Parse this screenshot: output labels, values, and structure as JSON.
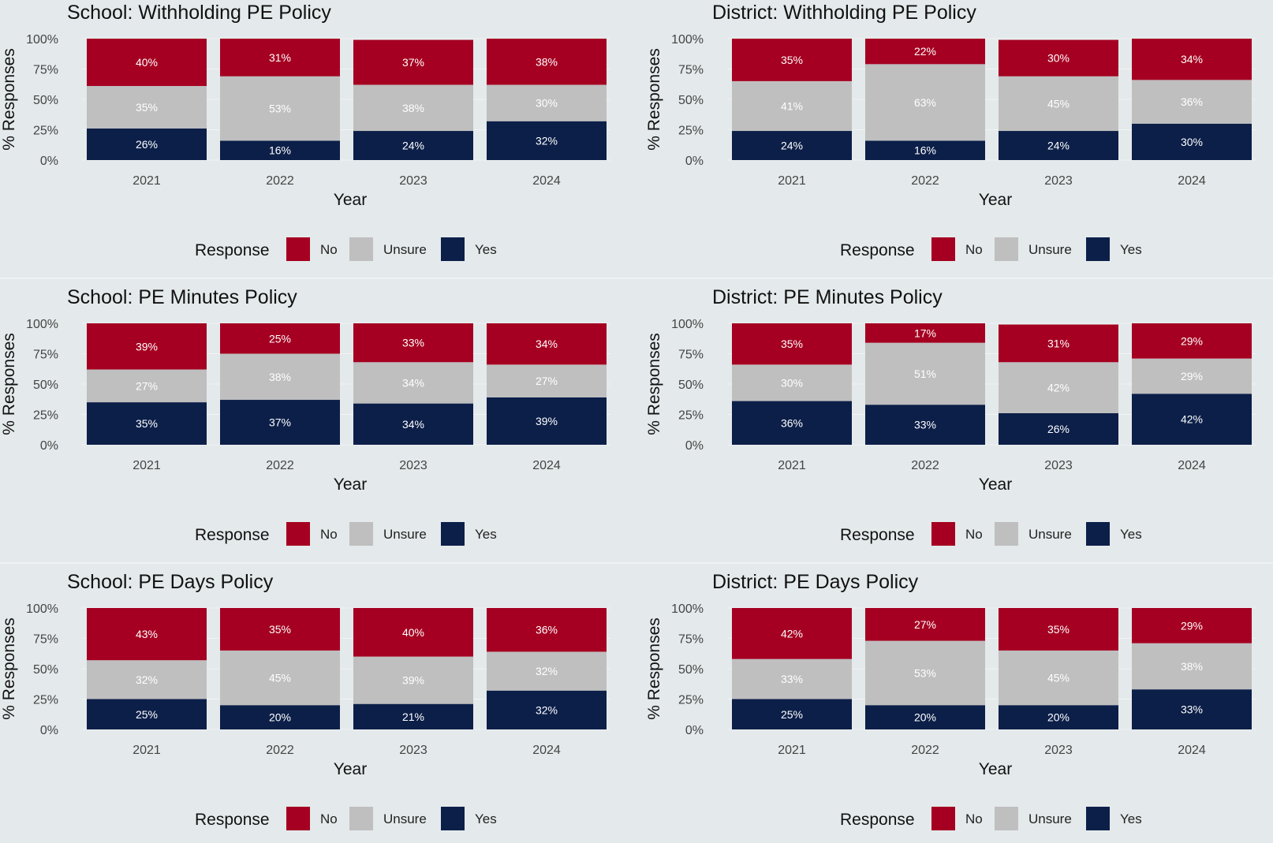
{
  "colors": {
    "No": "#a50021",
    "Unsure": "#bfbfbf",
    "Yes": "#0c1f49"
  },
  "legend": {
    "title": "Response",
    "labels": [
      "No",
      "Unsure",
      "Yes"
    ]
  },
  "chart_data": [
    {
      "type": "bar",
      "stacked": true,
      "title": "School: Withholding PE Policy",
      "xlabel": "Year",
      "ylabel": "% Responses",
      "categories": [
        "2021",
        "2022",
        "2023",
        "2024"
      ],
      "ylim": [
        0,
        100
      ],
      "yticks": [
        "0%",
        "25%",
        "50%",
        "75%",
        "100%"
      ],
      "series": [
        {
          "name": "Yes",
          "values": [
            26,
            16,
            24,
            32
          ],
          "labels": [
            "26%",
            "16%",
            "24%",
            "32%"
          ]
        },
        {
          "name": "Unsure",
          "values": [
            35,
            53,
            38,
            30
          ],
          "labels": [
            "35%",
            "53%",
            "38%",
            "30%"
          ]
        },
        {
          "name": "No",
          "values": [
            40,
            31,
            37,
            38
          ],
          "labels": [
            "40%",
            "31%",
            "37%",
            "38%"
          ]
        }
      ]
    },
    {
      "type": "bar",
      "stacked": true,
      "title": "District: Withholding PE Policy",
      "xlabel": "Year",
      "ylabel": "% Responses",
      "categories": [
        "2021",
        "2022",
        "2023",
        "2024"
      ],
      "ylim": [
        0,
        100
      ],
      "yticks": [
        "0%",
        "25%",
        "50%",
        "75%",
        "100%"
      ],
      "series": [
        {
          "name": "Yes",
          "values": [
            24,
            16,
            24,
            30
          ],
          "labels": [
            "24%",
            "16%",
            "24%",
            "30%"
          ]
        },
        {
          "name": "Unsure",
          "values": [
            41,
            63,
            45,
            36
          ],
          "labels": [
            "41%",
            "63%",
            "45%",
            "36%"
          ]
        },
        {
          "name": "No",
          "values": [
            35,
            22,
            30,
            34
          ],
          "labels": [
            "35%",
            "22%",
            "30%",
            "34%"
          ]
        }
      ]
    },
    {
      "type": "bar",
      "stacked": true,
      "title": "School: PE Minutes Policy",
      "xlabel": "Year",
      "ylabel": "% Responses",
      "categories": [
        "2021",
        "2022",
        "2023",
        "2024"
      ],
      "ylim": [
        0,
        100
      ],
      "yticks": [
        "0%",
        "25%",
        "50%",
        "75%",
        "100%"
      ],
      "series": [
        {
          "name": "Yes",
          "values": [
            35,
            37,
            34,
            39
          ],
          "labels": [
            "35%",
            "37%",
            "34%",
            "39%"
          ]
        },
        {
          "name": "Unsure",
          "values": [
            27,
            38,
            34,
            27
          ],
          "labels": [
            "27%",
            "38%",
            "34%",
            "27%"
          ]
        },
        {
          "name": "No",
          "values": [
            39,
            25,
            33,
            34
          ],
          "labels": [
            "39%",
            "25%",
            "33%",
            "34%"
          ]
        }
      ]
    },
    {
      "type": "bar",
      "stacked": true,
      "title": "District: PE Minutes Policy",
      "xlabel": "Year",
      "ylabel": "% Responses",
      "categories": [
        "2021",
        "2022",
        "2023",
        "2024"
      ],
      "ylim": [
        0,
        100
      ],
      "yticks": [
        "0%",
        "25%",
        "50%",
        "75%",
        "100%"
      ],
      "series": [
        {
          "name": "Yes",
          "values": [
            36,
            33,
            26,
            42
          ],
          "labels": [
            "36%",
            "33%",
            "26%",
            "42%"
          ]
        },
        {
          "name": "Unsure",
          "values": [
            30,
            51,
            42,
            29
          ],
          "labels": [
            "30%",
            "51%",
            "42%",
            "29%"
          ]
        },
        {
          "name": "No",
          "values": [
            35,
            17,
            31,
            29
          ],
          "labels": [
            "35%",
            "17%",
            "31%",
            "29%"
          ]
        }
      ]
    },
    {
      "type": "bar",
      "stacked": true,
      "title": "School: PE Days Policy",
      "xlabel": "Year",
      "ylabel": "% Responses",
      "categories": [
        "2021",
        "2022",
        "2023",
        "2024"
      ],
      "ylim": [
        0,
        100
      ],
      "yticks": [
        "0%",
        "25%",
        "50%",
        "75%",
        "100%"
      ],
      "series": [
        {
          "name": "Yes",
          "values": [
            25,
            20,
            21,
            32
          ],
          "labels": [
            "25%",
            "20%",
            "21%",
            "32%"
          ]
        },
        {
          "name": "Unsure",
          "values": [
            32,
            45,
            39,
            32
          ],
          "labels": [
            "32%",
            "45%",
            "39%",
            "32%"
          ]
        },
        {
          "name": "No",
          "values": [
            43,
            35,
            40,
            36
          ],
          "labels": [
            "43%",
            "35%",
            "40%",
            "36%"
          ]
        }
      ]
    },
    {
      "type": "bar",
      "stacked": true,
      "title": "District: PE Days Policy",
      "xlabel": "Year",
      "ylabel": "% Responses",
      "categories": [
        "2021",
        "2022",
        "2023",
        "2024"
      ],
      "ylim": [
        0,
        100
      ],
      "yticks": [
        "0%",
        "25%",
        "50%",
        "75%",
        "100%"
      ],
      "series": [
        {
          "name": "Yes",
          "values": [
            25,
            20,
            20,
            33
          ],
          "labels": [
            "25%",
            "20%",
            "20%",
            "33%"
          ]
        },
        {
          "name": "Unsure",
          "values": [
            33,
            53,
            45,
            38
          ],
          "labels": [
            "33%",
            "53%",
            "45%",
            "38%"
          ]
        },
        {
          "name": "No",
          "values": [
            42,
            27,
            35,
            29
          ],
          "labels": [
            "42%",
            "27%",
            "35%",
            "29%"
          ]
        }
      ]
    }
  ]
}
